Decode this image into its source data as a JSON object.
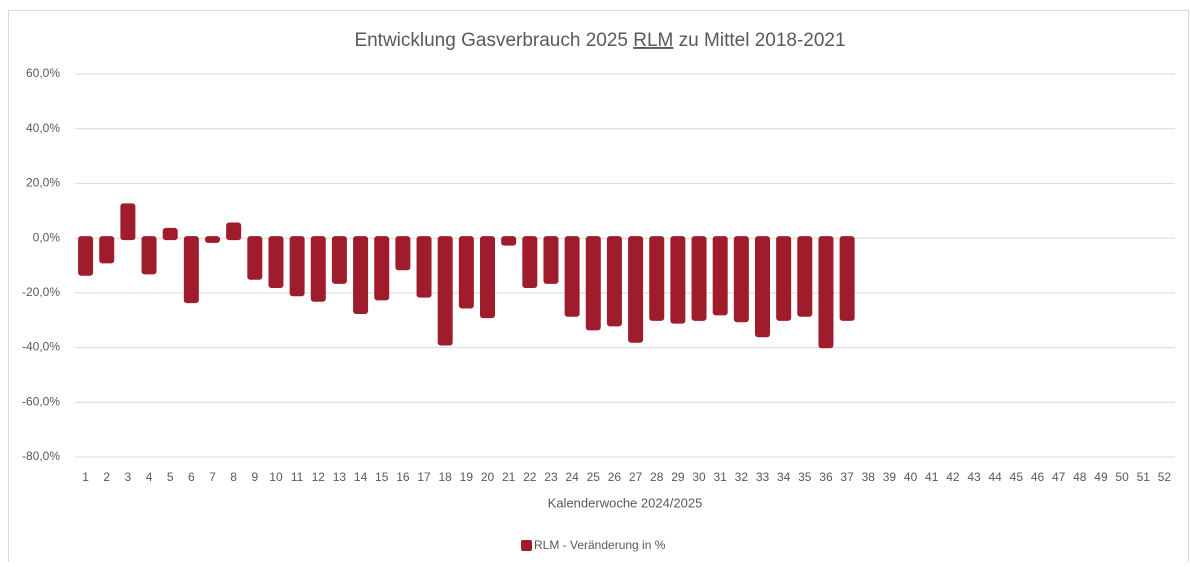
{
  "chart_data": {
    "type": "bar",
    "title": [
      "Entwicklung Gasverbrauch 2025 ",
      "RLM",
      " zu Mittel 2018-2021"
    ],
    "x_label": "Kalenderwoche 2024/2025",
    "categories": [
      "1",
      "2",
      "3",
      "4",
      "5",
      "6",
      "7",
      "8",
      "9",
      "10",
      "11",
      "12",
      "13",
      "14",
      "15",
      "16",
      "17",
      "18",
      "19",
      "20",
      "21",
      "22",
      "23",
      "24",
      "25",
      "26",
      "27",
      "28",
      "29",
      "30",
      "31",
      "32",
      "33",
      "34",
      "35",
      "36",
      "37",
      "38",
      "39",
      "40",
      "41",
      "42",
      "43",
      "44",
      "45",
      "46",
      "47",
      "48",
      "49",
      "50",
      "51",
      "52"
    ],
    "series": [
      {
        "name": "RLM - Veränderung in %",
        "color": "#9e1c2c",
        "values": [
          -13,
          -8.5,
          12,
          -12.5,
          3,
          -23,
          -1,
          5,
          -14.5,
          -17.5,
          -20.5,
          -22.5,
          -16,
          -27,
          -22,
          -11,
          -21,
          -38.5,
          -25,
          -28.5,
          -2,
          -17.5,
          -16,
          -28,
          -33,
          -31.5,
          -37.5,
          -29.5,
          -30.5,
          -29.5,
          -27.5,
          -30,
          -35.5,
          -29.5,
          -28,
          -39.5,
          -29.5,
          null,
          null,
          null,
          null,
          null,
          null,
          null,
          null,
          null,
          null,
          null,
          null,
          null,
          null,
          null
        ]
      }
    ],
    "ylim": [
      -80,
      60
    ],
    "yticks": [
      {
        "value": -80,
        "label": "-80,0%"
      },
      {
        "value": -60,
        "label": "-60,0%"
      },
      {
        "value": -40,
        "label": "-40,0%"
      },
      {
        "value": -20,
        "label": "-20,0%"
      },
      {
        "value": 0,
        "label": "0,0%"
      },
      {
        "value": 20,
        "label": "20,0%"
      },
      {
        "value": 40,
        "label": "40,0%"
      },
      {
        "value": 60,
        "label": "60,0%"
      }
    ],
    "grid": true,
    "legend": "bottom"
  }
}
